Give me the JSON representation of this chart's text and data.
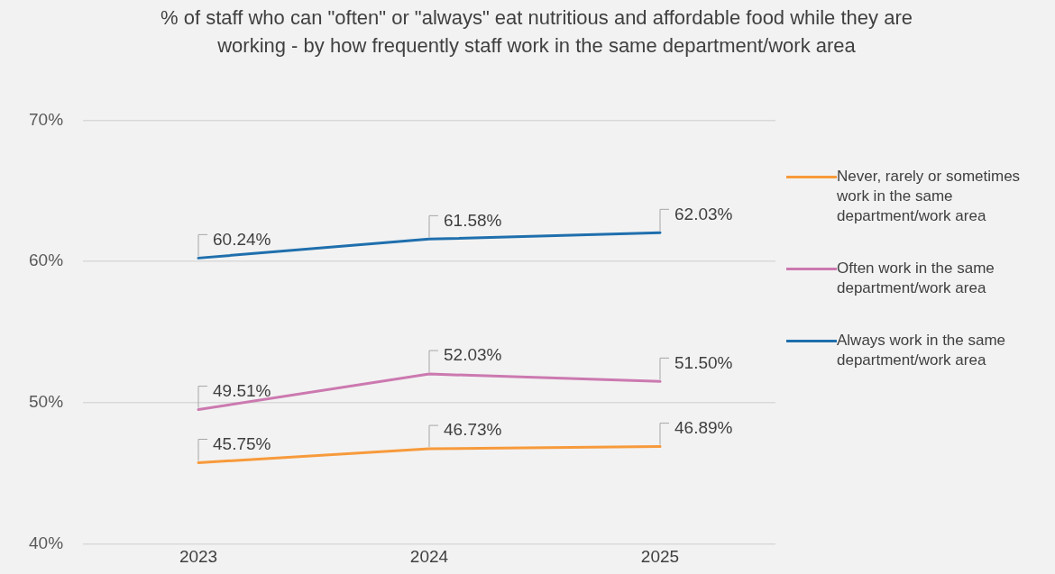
{
  "chart_data": {
    "type": "line",
    "title": "% of staff who can \"often\" or \"always\" eat nutritious and affordable food while they are working - by how frequently staff work in the same department/work area",
    "categories": [
      "2023",
      "2024",
      "2025"
    ],
    "series": [
      {
        "name": "Never, rarely or sometimes work in the same department/work area",
        "color": "#f79a3b",
        "values": [
          45.75,
          46.73,
          46.89
        ],
        "value_labels": [
          "45.75%",
          "46.73%",
          "46.89%"
        ]
      },
      {
        "name": "Often work in the same department/work area",
        "color": "#cc79b0",
        "values": [
          49.51,
          52.03,
          51.5
        ],
        "value_labels": [
          "49.51%",
          "52.03%",
          "51.50%"
        ]
      },
      {
        "name": "Always work in the same department/work area",
        "color": "#1f6fad",
        "values": [
          60.24,
          61.58,
          62.03
        ],
        "value_labels": [
          "60.24%",
          "61.58%",
          "62.03%"
        ]
      }
    ],
    "ylim": [
      40,
      70
    ],
    "yticks": [
      {
        "value": 40,
        "label": "40%"
      },
      {
        "value": 50,
        "label": "50%"
      },
      {
        "value": 60,
        "label": "60%"
      },
      {
        "value": 70,
        "label": "70%"
      }
    ],
    "grid": "y",
    "legend": "right",
    "marker": "none",
    "line_style": "solid"
  }
}
